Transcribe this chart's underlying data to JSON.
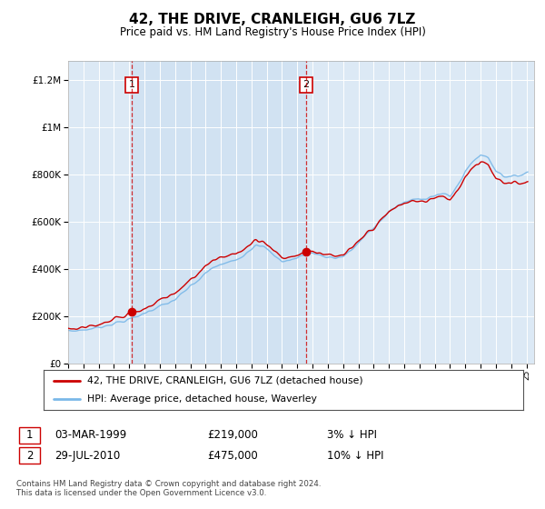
{
  "title": "42, THE DRIVE, CRANLEIGH, GU6 7LZ",
  "subtitle": "Price paid vs. HM Land Registry's House Price Index (HPI)",
  "ytick_values": [
    0,
    200000,
    400000,
    600000,
    800000,
    1000000,
    1200000
  ],
  "ylim": [
    0,
    1280000
  ],
  "background_color": "#dce9f5",
  "plot_bg_color": "#dce9f5",
  "shade_color": "#c8dcf0",
  "hpi_color": "#7ab8e8",
  "price_color": "#cc0000",
  "grid_color": "#ffffff",
  "sale1": {
    "date_x": 1999.17,
    "price": 219000,
    "label": "1"
  },
  "sale2": {
    "date_x": 2010.58,
    "price": 475000,
    "label": "2"
  },
  "legend_label1": "42, THE DRIVE, CRANLEIGH, GU6 7LZ (detached house)",
  "legend_label2": "HPI: Average price, detached house, Waverley",
  "table_row1": [
    "1",
    "03-MAR-1999",
    "£219,000",
    "3% ↓ HPI"
  ],
  "table_row2": [
    "2",
    "29-JUL-2010",
    "£475,000",
    "10% ↓ HPI"
  ],
  "footnote": "Contains HM Land Registry data © Crown copyright and database right 2024.\nThis data is licensed under the Open Government Licence v3.0.",
  "xmin": 1995,
  "xmax": 2025.5
}
